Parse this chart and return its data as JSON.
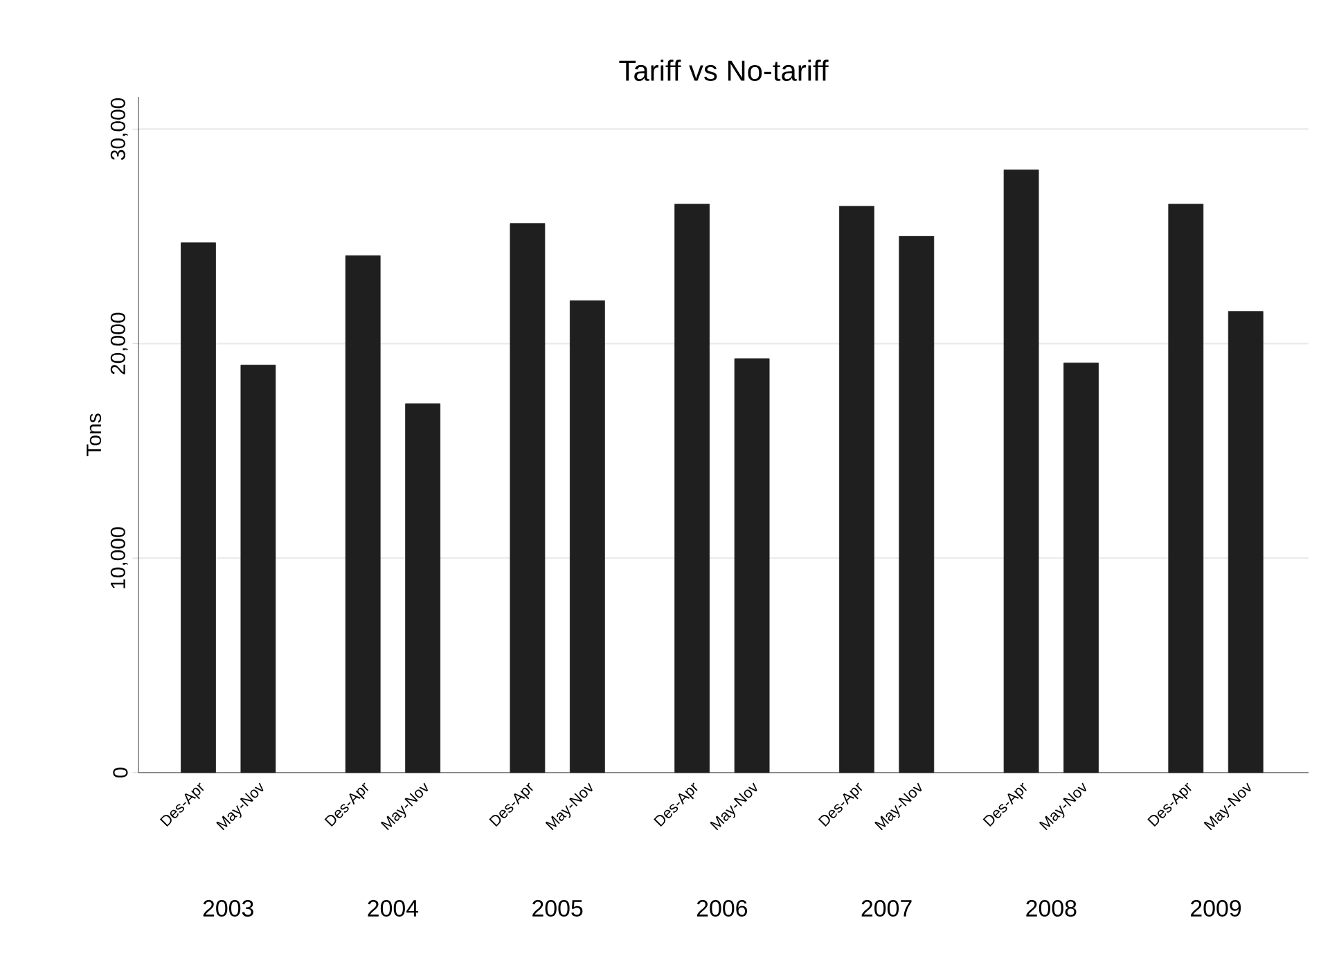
{
  "chart_data": {
    "type": "bar",
    "title": "Tariff vs No-tariff",
    "ylabel": "Tons",
    "categories": [
      "Des-Apr",
      "May-Nov",
      "Des-Apr",
      "May-Nov",
      "Des-Apr",
      "May-Nov",
      "Des-Apr",
      "May-Nov",
      "Des-Apr",
      "May-Nov",
      "Des-Apr",
      "May-Nov",
      "Des-Apr",
      "May-Nov"
    ],
    "values": [
      24700,
      19000,
      24100,
      17200,
      25600,
      22000,
      26500,
      19300,
      26400,
      25000,
      28100,
      19100,
      26500,
      21500
    ],
    "color": "#1f1f1f",
    "annotations": [
      "2003",
      "2004",
      "2005",
      "2006",
      "2007",
      "2008",
      "2009"
    ],
    "ylim": [
      0,
      31500
    ],
    "yticks": [
      {
        "value": 0,
        "label": "0"
      },
      {
        "value": 10000,
        "label": "10,000"
      },
      {
        "value": 20000,
        "label": "20,000"
      },
      {
        "value": 30000,
        "label": "30,000"
      }
    ],
    "grid": "y"
  }
}
